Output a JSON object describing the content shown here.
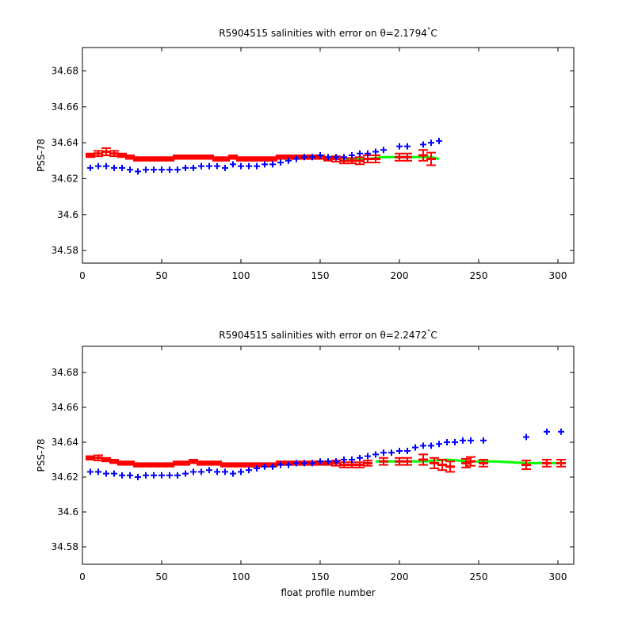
{
  "chart_data": [
    {
      "type": "scatter",
      "title": "R5904515 salinities with error on θ=2.1794°C",
      "title_parts": {
        "prefix": "R5904515 salinities with error on θ=2.1794",
        "degree": "°",
        "suffix": "C"
      },
      "xlabel": "",
      "ylabel": "PSS-78",
      "xlim": [
        0,
        310
      ],
      "ylim": [
        34.573,
        34.693
      ],
      "xticks": [
        0,
        50,
        100,
        150,
        200,
        250,
        300
      ],
      "yticks": [
        34.58,
        34.6,
        34.62,
        34.64,
        34.66,
        34.68
      ],
      "ytick_labels": [
        "34.58",
        "34.6",
        "34.62",
        "34.64",
        "34.66",
        "34.68"
      ],
      "series": [
        {
          "color": "#0000ff",
          "marker": "plus",
          "x": [
            5,
            10,
            15,
            20,
            25,
            30,
            35,
            40,
            45,
            50,
            55,
            60,
            65,
            70,
            75,
            80,
            85,
            90,
            95,
            100,
            105,
            110,
            115,
            120,
            125,
            130,
            135,
            140,
            145,
            150,
            155,
            160,
            165,
            170,
            175,
            180,
            185,
            190,
            200,
            205,
            215,
            220,
            225
          ],
          "y": [
            34.626,
            34.627,
            34.627,
            34.626,
            34.626,
            34.625,
            34.624,
            34.625,
            34.625,
            34.625,
            34.625,
            34.625,
            34.626,
            34.626,
            34.627,
            34.627,
            34.627,
            34.626,
            34.628,
            34.627,
            34.627,
            34.627,
            34.628,
            34.628,
            34.629,
            34.63,
            34.631,
            34.632,
            34.632,
            34.633,
            34.632,
            34.632,
            34.632,
            34.633,
            34.634,
            34.634,
            34.635,
            34.636,
            34.638,
            34.638,
            34.639,
            34.64,
            34.641
          ]
        },
        {
          "color": "#ff0000",
          "marker": "errorbar",
          "x": [
            5,
            10,
            15,
            20,
            25,
            30,
            35,
            40,
            45,
            50,
            55,
            60,
            65,
            70,
            75,
            80,
            85,
            90,
            95,
            100,
            105,
            110,
            115,
            120,
            125,
            130,
            135,
            140,
            145,
            150,
            155,
            160,
            165,
            170,
            175,
            180,
            185,
            200,
            205,
            215,
            220
          ],
          "y": [
            34.633,
            34.634,
            34.635,
            34.634,
            34.633,
            34.632,
            34.631,
            34.631,
            34.631,
            34.631,
            34.631,
            34.632,
            34.632,
            34.632,
            34.632,
            34.632,
            34.631,
            34.631,
            34.632,
            34.631,
            34.631,
            34.631,
            34.631,
            34.631,
            34.632,
            34.632,
            34.632,
            34.632,
            34.632,
            34.632,
            34.631,
            34.631,
            34.63,
            34.63,
            34.63,
            34.631,
            34.631,
            34.632,
            34.632,
            34.633,
            34.631
          ],
          "err": [
            0.001,
            0.0015,
            0.002,
            0.0015,
            0.001,
            0.001,
            0.001,
            0.001,
            0.001,
            0.001,
            0.001,
            0.001,
            0.001,
            0.001,
            0.001,
            0.001,
            0.001,
            0.001,
            0.001,
            0.001,
            0.001,
            0.001,
            0.001,
            0.001,
            0.001,
            0.001,
            0.001,
            0.001,
            0.001,
            0.001,
            0.001,
            0.0015,
            0.0015,
            0.0015,
            0.002,
            0.002,
            0.002,
            0.002,
            0.002,
            0.003,
            0.0035
          ]
        },
        {
          "color": "#00ff00",
          "marker": "line",
          "x": [
            150,
            160,
            170,
            180,
            190,
            200,
            210,
            220,
            225
          ],
          "y": [
            34.632,
            34.632,
            34.631,
            34.631,
            34.632,
            34.632,
            34.632,
            34.632,
            34.631
          ]
        }
      ]
    },
    {
      "type": "scatter",
      "title": "R5904515 salinities with error on θ=2.2472°C",
      "title_parts": {
        "prefix": "R5904515 salinities with error on θ=2.2472",
        "degree": "°",
        "suffix": "C"
      },
      "xlabel": "float profile number",
      "ylabel": "PSS-78",
      "xlim": [
        0,
        310
      ],
      "ylim": [
        34.57,
        34.695
      ],
      "xticks": [
        0,
        50,
        100,
        150,
        200,
        250,
        300
      ],
      "yticks": [
        34.58,
        34.6,
        34.62,
        34.64,
        34.66,
        34.68
      ],
      "ytick_labels": [
        "34.58",
        "34.6",
        "34.62",
        "34.64",
        "34.66",
        "34.68"
      ],
      "series": [
        {
          "color": "#0000ff",
          "marker": "plus",
          "x": [
            5,
            10,
            15,
            20,
            25,
            30,
            35,
            40,
            45,
            50,
            55,
            60,
            65,
            70,
            75,
            80,
            85,
            90,
            95,
            100,
            105,
            110,
            115,
            120,
            125,
            130,
            135,
            140,
            145,
            150,
            155,
            160,
            165,
            170,
            175,
            180,
            185,
            190,
            195,
            200,
            205,
            210,
            215,
            220,
            225,
            230,
            235,
            240,
            245,
            253,
            280,
            293,
            302
          ],
          "y": [
            34.623,
            34.623,
            34.622,
            34.622,
            34.621,
            34.621,
            34.62,
            34.621,
            34.621,
            34.621,
            34.621,
            34.621,
            34.622,
            34.623,
            34.623,
            34.624,
            34.623,
            34.623,
            34.622,
            34.623,
            34.624,
            34.625,
            34.626,
            34.626,
            34.627,
            34.627,
            34.628,
            34.628,
            34.628,
            34.629,
            34.629,
            34.629,
            34.63,
            34.63,
            34.631,
            34.632,
            34.633,
            34.634,
            34.634,
            34.635,
            34.635,
            34.637,
            34.638,
            34.638,
            34.639,
            34.64,
            34.64,
            34.641,
            34.641,
            34.641,
            34.643,
            34.646,
            34.646
          ]
        },
        {
          "color": "#ff0000",
          "marker": "errorbar",
          "x": [
            5,
            10,
            15,
            20,
            25,
            30,
            35,
            40,
            45,
            50,
            55,
            60,
            65,
            70,
            75,
            80,
            85,
            90,
            95,
            100,
            105,
            110,
            115,
            120,
            125,
            130,
            135,
            140,
            145,
            150,
            155,
            160,
            165,
            170,
            175,
            180,
            190,
            200,
            205,
            215,
            222,
            227,
            232,
            242,
            245,
            253,
            280,
            293,
            302
          ],
          "y": [
            34.631,
            34.631,
            34.63,
            34.629,
            34.628,
            34.628,
            34.627,
            34.627,
            34.627,
            34.627,
            34.627,
            34.628,
            34.628,
            34.629,
            34.628,
            34.628,
            34.628,
            34.627,
            34.627,
            34.627,
            34.627,
            34.627,
            34.627,
            34.627,
            34.628,
            34.628,
            34.628,
            34.628,
            34.628,
            34.628,
            34.628,
            34.628,
            34.627,
            34.627,
            34.627,
            34.628,
            34.629,
            34.629,
            34.629,
            34.63,
            34.628,
            34.627,
            34.626,
            34.628,
            34.629,
            34.628,
            34.627,
            34.628,
            34.628
          ],
          "err": [
            0.001,
            0.0015,
            0.001,
            0.001,
            0.001,
            0.001,
            0.001,
            0.001,
            0.001,
            0.001,
            0.001,
            0.001,
            0.001,
            0.001,
            0.001,
            0.001,
            0.001,
            0.001,
            0.001,
            0.001,
            0.001,
            0.001,
            0.001,
            0.001,
            0.001,
            0.001,
            0.001,
            0.001,
            0.001,
            0.001,
            0.001,
            0.0015,
            0.0015,
            0.0015,
            0.0015,
            0.0015,
            0.002,
            0.002,
            0.002,
            0.003,
            0.003,
            0.003,
            0.003,
            0.0025,
            0.0025,
            0.002,
            0.0025,
            0.002,
            0.002
          ]
        },
        {
          "color": "#00ff00",
          "marker": "line",
          "x": [
            185,
            200,
            215,
            230,
            245,
            260,
            280,
            300
          ],
          "y": [
            34.629,
            34.629,
            34.629,
            34.63,
            34.629,
            34.629,
            34.628,
            34.628
          ]
        }
      ]
    }
  ]
}
